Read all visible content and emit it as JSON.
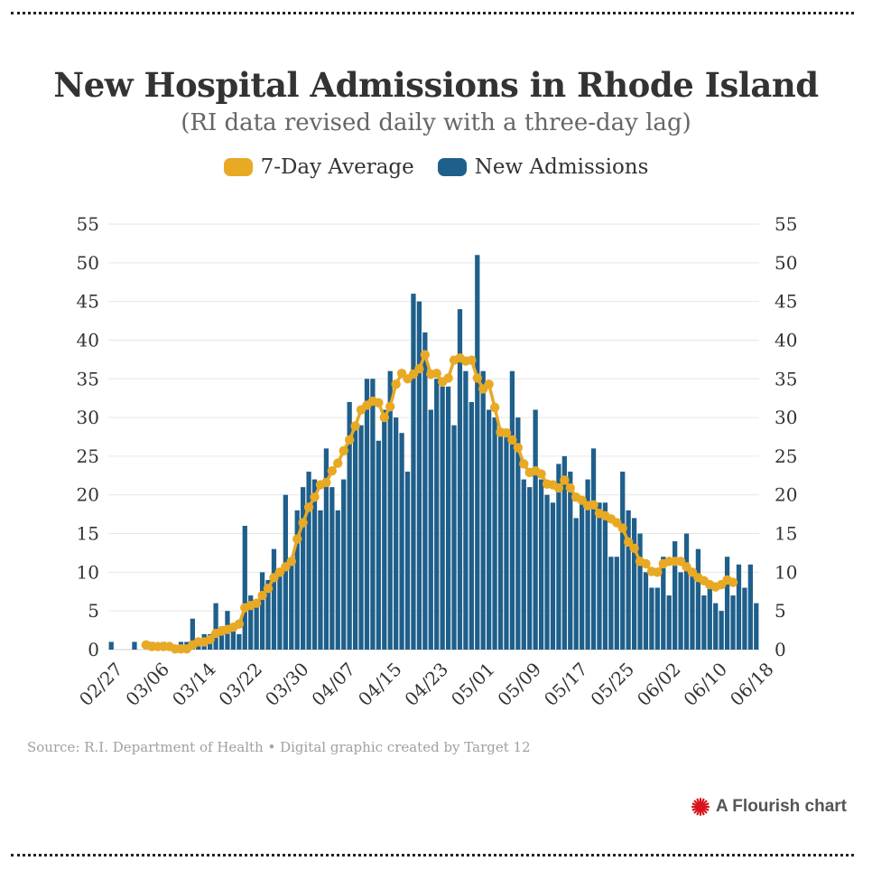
{
  "title": "New Hospital Admissions in Rhode Island",
  "subtitle": "(RI data revised daily with a three-day lag)",
  "legend": [
    {
      "label": "7-Day Average",
      "color": "#e8a925"
    },
    {
      "label": "New Admissions",
      "color": "#1f5f8b"
    }
  ],
  "source": "Source: R.I. Department of Health • Digital graphic created by Target 12",
  "brand": {
    "text": "A Flourish chart",
    "icon": "flourish-star-icon",
    "icon_color": "#d8151c"
  },
  "chart_data": {
    "type": "bar",
    "title": "New Hospital Admissions in Rhode Island",
    "ylim": [
      0,
      55
    ],
    "yticks": [
      0,
      5,
      10,
      15,
      20,
      25,
      30,
      35,
      40,
      45,
      50,
      55
    ],
    "xtick_labels": [
      "02/27",
      "03/06",
      "03/14",
      "03/22",
      "03/30",
      "04/07",
      "04/15",
      "04/23",
      "05/01",
      "05/09",
      "05/17",
      "05/25",
      "06/02",
      "06/10",
      "06/18"
    ],
    "xtick_start_index": 0,
    "xtick_step": 8,
    "series": [
      {
        "name": "New Admissions",
        "color": "#1f5f8b",
        "values": [
          1,
          0,
          0,
          0,
          1,
          0,
          0,
          1,
          0,
          1,
          0,
          0,
          1,
          1,
          4,
          1,
          2,
          2,
          6,
          3,
          5,
          3,
          2,
          16,
          7,
          6,
          10,
          9,
          13,
          10,
          20,
          11,
          18,
          21,
          23,
          22,
          18,
          26,
          21,
          18,
          22,
          32,
          29,
          29,
          35,
          35,
          27,
          31,
          36,
          30,
          28,
          23,
          46,
          45,
          41,
          31,
          35,
          34,
          34,
          29,
          44,
          36,
          32,
          51,
          36,
          31,
          30,
          28,
          28,
          36,
          30,
          22,
          21,
          31,
          22,
          20,
          19,
          24,
          25,
          23,
          17,
          19,
          22,
          26,
          19,
          19,
          12,
          12,
          23,
          18,
          17,
          15,
          10,
          8,
          8,
          12,
          7,
          14,
          10,
          15,
          10,
          13,
          7,
          8,
          6,
          5,
          12,
          7,
          11,
          8,
          11,
          6
        ],
        "color_rule": "constant"
      },
      {
        "name": "7-Day Average",
        "color": "#e8a925",
        "start_index": 6,
        "values": [
          0.6,
          0.4,
          0.4,
          0.4,
          0.4,
          0.1,
          0.1,
          0.1,
          0.6,
          1,
          1,
          1.3,
          2.1,
          2.4,
          2.6,
          2.9,
          3.3,
          5.4,
          5.7,
          6,
          7,
          7.9,
          9.3,
          10,
          10.7,
          11.4,
          14.3,
          16.4,
          18.4,
          19.7,
          21.3,
          21.6,
          23.1,
          24.1,
          25.7,
          27.1,
          28.9,
          31,
          31.6,
          32.1,
          31.9,
          30,
          31.4,
          34.3,
          35.7,
          35,
          35.6,
          36.3,
          38.1,
          35.6,
          35.7,
          34.6,
          35.1,
          37.4,
          37.7,
          37.3,
          37.4,
          35.1,
          33.7,
          34.3,
          31.3,
          28.1,
          28,
          27.1,
          26.1,
          24,
          22.9,
          23.1,
          22.7,
          21.4,
          21.3,
          20.9,
          21.9,
          20.9,
          19.7,
          19.3,
          18.6,
          18.7,
          17.6,
          17.3,
          16.9,
          16.4,
          15.7,
          13.9,
          13.1,
          11.4,
          11.1,
          10.1,
          10,
          11.1,
          11.4,
          11.4,
          11.4,
          10.7,
          10,
          9.3,
          8.9,
          8.4,
          8.1,
          8.4,
          9,
          8.7
        ],
        "color_rule": "constant"
      }
    ]
  }
}
